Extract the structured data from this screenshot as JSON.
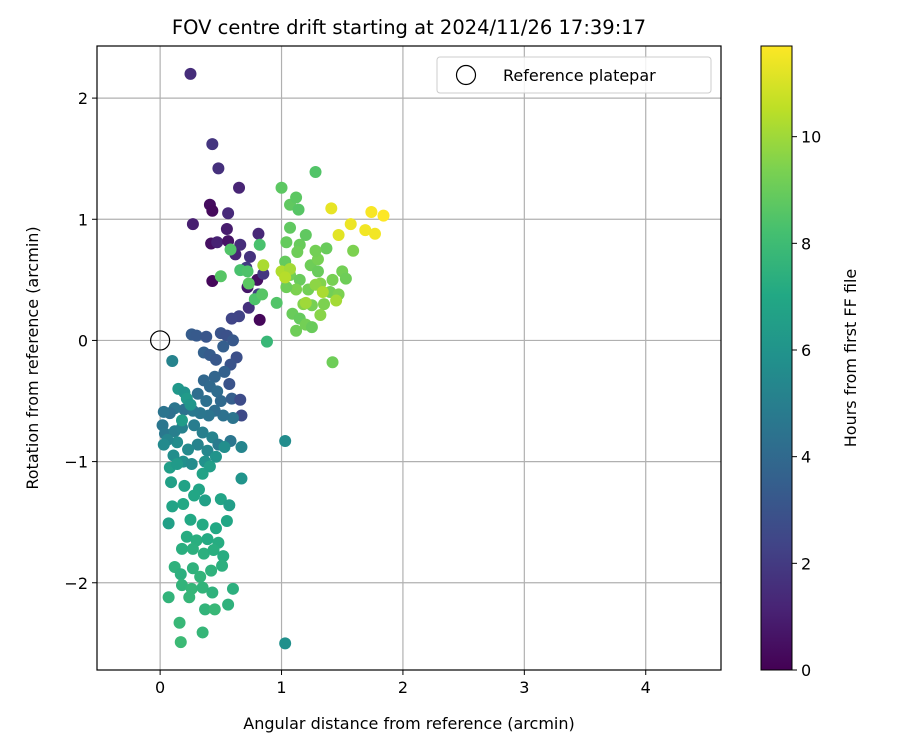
{
  "chart_data": {
    "type": "scatter",
    "title": "FOV centre drift starting at 2024/11/26 17:39:17",
    "xlabel": "Angular distance from reference (arcmin)",
    "ylabel": "Rotation from reference (arcmin)",
    "xlim": [
      -0.52,
      4.62
    ],
    "ylim": [
      -2.72,
      2.43
    ],
    "xticks": [
      0,
      1,
      2,
      3,
      4
    ],
    "xtick_labels": [
      "0",
      "1",
      "2",
      "3",
      "4"
    ],
    "yticks": [
      -2,
      -1,
      0,
      1,
      2
    ],
    "ytick_labels": [
      "−2",
      "−1",
      "0",
      "1",
      "2"
    ],
    "grid": true,
    "legend": {
      "placement": "top-right",
      "entries": [
        "Reference platepar"
      ]
    },
    "reference_point": {
      "name": "Reference platepar",
      "x": 0,
      "y": 0
    },
    "colorbar": {
      "label": "Hours from first FF file",
      "colormap": "viridis",
      "range": [
        0,
        11.7
      ],
      "ticks": [
        0,
        2,
        4,
        6,
        8,
        10
      ],
      "tick_labels": [
        "0",
        "2",
        "4",
        "6",
        "8",
        "10"
      ]
    },
    "series": [
      {
        "points": [
          [
            0.25,
            2.2,
            1.5
          ],
          [
            0.43,
            1.62,
            1.8
          ],
          [
            0.48,
            1.42,
            1.6
          ],
          [
            0.65,
            1.26,
            1.2
          ],
          [
            0.41,
            1.12,
            0.4
          ],
          [
            0.43,
            1.07,
            0.3
          ],
          [
            0.56,
            1.05,
            1.4
          ],
          [
            0.27,
            0.96,
            1.0
          ],
          [
            0.55,
            0.92,
            0.9
          ],
          [
            0.81,
            0.88,
            1.3
          ],
          [
            0.42,
            0.8,
            0.5
          ],
          [
            0.47,
            0.81,
            1.1
          ],
          [
            0.56,
            0.82,
            0.6
          ],
          [
            0.66,
            0.79,
            1.5
          ],
          [
            0.74,
            0.69,
            1.7
          ],
          [
            0.62,
            0.71,
            1.2
          ],
          [
            0.43,
            0.49,
            0.2
          ],
          [
            0.72,
            0.44,
            0.7
          ],
          [
            0.8,
            0.5,
            0.5
          ],
          [
            0.82,
            0.17,
            0.2
          ],
          [
            0.73,
            0.27,
            1.6
          ],
          [
            0.65,
            0.2,
            2.3
          ],
          [
            0.59,
            0.18,
            2.4
          ],
          [
            0.85,
            0.55,
            1.9
          ],
          [
            0.71,
            0.6,
            2.0
          ],
          [
            0.81,
            0.38,
            2.1
          ],
          [
            0.26,
            0.05,
            3.4
          ],
          [
            0.3,
            0.04,
            3.3
          ],
          [
            0.38,
            0.03,
            3.1
          ],
          [
            0.5,
            0.06,
            3.0
          ],
          [
            0.55,
            0.04,
            2.9
          ],
          [
            0.6,
            0.0,
            3.2
          ],
          [
            0.52,
            -0.05,
            3.5
          ],
          [
            0.36,
            -0.1,
            3.6
          ],
          [
            0.41,
            -0.12,
            3.4
          ],
          [
            0.46,
            -0.16,
            3.2
          ],
          [
            0.63,
            -0.14,
            2.8
          ],
          [
            0.58,
            -0.2,
            3.0
          ],
          [
            0.53,
            -0.26,
            3.6
          ],
          [
            0.45,
            -0.3,
            3.8
          ],
          [
            0.36,
            -0.33,
            3.9
          ],
          [
            0.41,
            -0.38,
            4.0
          ],
          [
            0.47,
            -0.42,
            4.1
          ],
          [
            0.57,
            -0.36,
            3.0
          ],
          [
            0.31,
            -0.44,
            4.2
          ],
          [
            0.38,
            -0.5,
            4.3
          ],
          [
            0.5,
            -0.5,
            4.0
          ],
          [
            0.59,
            -0.48,
            3.5
          ],
          [
            0.66,
            -0.49,
            2.7
          ],
          [
            0.67,
            -0.62,
            2.6
          ],
          [
            0.6,
            -0.64,
            4.5
          ],
          [
            0.52,
            -0.62,
            4.4
          ],
          [
            0.45,
            -0.58,
            4.2
          ],
          [
            0.4,
            -0.62,
            4.5
          ],
          [
            0.33,
            -0.6,
            4.6
          ],
          [
            0.27,
            -0.58,
            4.7
          ],
          [
            0.2,
            -0.57,
            4.4
          ],
          [
            0.12,
            -0.56,
            4.6
          ],
          [
            0.08,
            -0.6,
            4.3
          ],
          [
            0.03,
            -0.59,
            4.5
          ],
          [
            0.02,
            -0.7,
            4.6
          ],
          [
            0.04,
            -0.77,
            4.7
          ],
          [
            0.12,
            -0.75,
            5.0
          ],
          [
            0.18,
            -0.72,
            5.1
          ],
          [
            0.28,
            -0.7,
            4.9
          ],
          [
            0.35,
            -0.76,
            5.0
          ],
          [
            0.43,
            -0.8,
            5.2
          ],
          [
            0.48,
            -0.86,
            4.8
          ],
          [
            0.58,
            -0.83,
            4.6
          ],
          [
            0.67,
            -0.88,
            5.3
          ],
          [
            0.39,
            -0.91,
            5.4
          ],
          [
            0.31,
            -0.86,
            5.2
          ],
          [
            0.23,
            -0.9,
            5.5
          ],
          [
            0.14,
            -0.84,
            5.6
          ],
          [
            0.06,
            -0.82,
            5.3
          ],
          [
            0.03,
            -0.86,
            5.5
          ],
          [
            0.11,
            -0.95,
            5.7
          ],
          [
            0.19,
            -1.0,
            5.8
          ],
          [
            0.26,
            -1.02,
            5.6
          ],
          [
            0.37,
            -1.0,
            5.9
          ],
          [
            0.46,
            -0.96,
            6.0
          ],
          [
            0.53,
            -0.88,
            5.7
          ],
          [
            0.1,
            -0.17,
            5.2
          ],
          [
            1.03,
            -0.83,
            5.6
          ],
          [
            1.03,
            -2.5,
            5.8
          ],
          [
            0.67,
            -1.14,
            6.0
          ],
          [
            0.15,
            -0.4,
            6.2
          ],
          [
            0.2,
            -0.43,
            6.0
          ],
          [
            0.22,
            -0.48,
            6.3
          ],
          [
            0.18,
            -0.66,
            6.4
          ],
          [
            0.25,
            -0.53,
            6.1
          ],
          [
            0.08,
            -1.05,
            6.5
          ],
          [
            0.14,
            -1.02,
            6.3
          ],
          [
            0.35,
            -1.1,
            6.7
          ],
          [
            0.41,
            -1.04,
            6.5
          ],
          [
            0.09,
            -1.17,
            6.6
          ],
          [
            0.2,
            -1.2,
            6.7
          ],
          [
            0.32,
            -1.23,
            6.8
          ],
          [
            0.28,
            -1.28,
            6.9
          ],
          [
            0.19,
            -1.35,
            7.0
          ],
          [
            0.37,
            -1.32,
            6.6
          ],
          [
            0.5,
            -1.31,
            6.8
          ],
          [
            0.57,
            -1.36,
            6.5
          ],
          [
            0.07,
            -1.51,
            6.6
          ],
          [
            0.1,
            -1.37,
            6.8
          ],
          [
            0.25,
            -1.48,
            7.0
          ],
          [
            0.35,
            -1.52,
            7.1
          ],
          [
            0.46,
            -1.55,
            7.0
          ],
          [
            0.55,
            -1.49,
            6.9
          ],
          [
            0.22,
            -1.62,
            7.2
          ],
          [
            0.3,
            -1.65,
            7.3
          ],
          [
            0.39,
            -1.64,
            7.1
          ],
          [
            0.48,
            -1.67,
            7.2
          ],
          [
            0.18,
            -1.72,
            7.3
          ],
          [
            0.27,
            -1.72,
            7.4
          ],
          [
            0.36,
            -1.76,
            7.4
          ],
          [
            0.44,
            -1.73,
            7.3
          ],
          [
            0.52,
            -1.78,
            7.2
          ],
          [
            0.12,
            -1.87,
            7.5
          ],
          [
            0.17,
            -1.93,
            7.4
          ],
          [
            0.27,
            -1.88,
            7.5
          ],
          [
            0.33,
            -1.95,
            7.6
          ],
          [
            0.42,
            -1.9,
            7.5
          ],
          [
            0.51,
            -1.86,
            7.4
          ],
          [
            0.18,
            -2.02,
            7.6
          ],
          [
            0.26,
            -2.05,
            7.7
          ],
          [
            0.35,
            -2.04,
            7.6
          ],
          [
            0.43,
            -2.08,
            7.5
          ],
          [
            0.6,
            -2.05,
            7.4
          ],
          [
            0.07,
            -2.12,
            7.6
          ],
          [
            0.24,
            -2.12,
            7.7
          ],
          [
            0.37,
            -2.22,
            7.6
          ],
          [
            0.45,
            -2.22,
            7.8
          ],
          [
            0.56,
            -2.18,
            7.5
          ],
          [
            0.16,
            -2.33,
            7.8
          ],
          [
            0.35,
            -2.41,
            7.7
          ],
          [
            0.17,
            -2.49,
            7.9
          ],
          [
            0.88,
            -0.01,
            7.8
          ],
          [
            0.58,
            0.75,
            8.5
          ],
          [
            0.66,
            0.58,
            8.3
          ],
          [
            0.72,
            0.57,
            8.4
          ],
          [
            0.5,
            0.53,
            8.6
          ],
          [
            0.73,
            0.47,
            8.7
          ],
          [
            0.78,
            0.34,
            8.4
          ],
          [
            0.84,
            0.38,
            8.6
          ],
          [
            0.96,
            0.31,
            8.5
          ],
          [
            0.82,
            0.79,
            8.3
          ],
          [
            1.0,
            1.26,
            8.7
          ],
          [
            1.07,
            1.12,
            8.8
          ],
          [
            1.14,
            1.08,
            8.6
          ],
          [
            1.12,
            1.18,
            8.7
          ],
          [
            1.28,
            1.39,
            8.5
          ],
          [
            1.07,
            0.93,
            8.8
          ],
          [
            1.04,
            0.81,
            8.9
          ],
          [
            1.15,
            0.79,
            9.0
          ],
          [
            1.2,
            0.87,
            8.8
          ],
          [
            1.13,
            0.73,
            9.1
          ],
          [
            1.03,
            0.65,
            8.9
          ],
          [
            1.07,
            0.54,
            9.2
          ],
          [
            1.15,
            0.5,
            9.0
          ],
          [
            1.24,
            0.62,
            9.1
          ],
          [
            1.3,
            0.67,
            9.3
          ],
          [
            1.3,
            0.57,
            9.0
          ],
          [
            1.22,
            0.42,
            9.2
          ],
          [
            1.12,
            0.42,
            9.4
          ],
          [
            1.04,
            0.44,
            9.1
          ],
          [
            1.09,
            0.22,
            9.0
          ],
          [
            1.15,
            0.18,
            8.9
          ],
          [
            1.12,
            0.08,
            9.1
          ],
          [
            1.2,
            0.13,
            9.2
          ],
          [
            1.25,
            0.29,
            9.3
          ],
          [
            1.35,
            0.3,
            9.4
          ],
          [
            1.4,
            0.4,
            9.2
          ],
          [
            1.32,
            0.47,
            9.5
          ],
          [
            1.42,
            0.5,
            9.3
          ],
          [
            1.47,
            0.38,
            9.4
          ],
          [
            1.5,
            0.57,
            9.2
          ],
          [
            1.53,
            0.51,
            9.1
          ],
          [
            1.37,
            0.76,
            9.0
          ],
          [
            1.28,
            0.74,
            9.2
          ],
          [
            1.25,
            0.11,
            9.0
          ],
          [
            1.42,
            -0.18,
            9.1
          ],
          [
            1.59,
            0.74,
            9.4
          ],
          [
            1.32,
            0.21,
            9.6
          ],
          [
            1.18,
            0.3,
            9.5
          ],
          [
            1.28,
            0.46,
            9.7
          ],
          [
            0.85,
            0.62,
            10.2
          ],
          [
            1.0,
            0.57,
            10.3
          ],
          [
            1.07,
            0.59,
            10.1
          ],
          [
            1.03,
            0.52,
            10.4
          ],
          [
            1.2,
            0.31,
            10.0
          ],
          [
            1.34,
            0.4,
            10.2
          ],
          [
            1.45,
            0.33,
            10.1
          ],
          [
            1.41,
            1.09,
            11.3
          ],
          [
            1.47,
            0.87,
            11.2
          ],
          [
            1.57,
            0.96,
            11.4
          ],
          [
            1.69,
            0.91,
            11.5
          ],
          [
            1.74,
            1.06,
            11.6
          ],
          [
            1.77,
            0.88,
            11.5
          ],
          [
            1.84,
            1.03,
            11.7
          ]
        ]
      }
    ]
  }
}
